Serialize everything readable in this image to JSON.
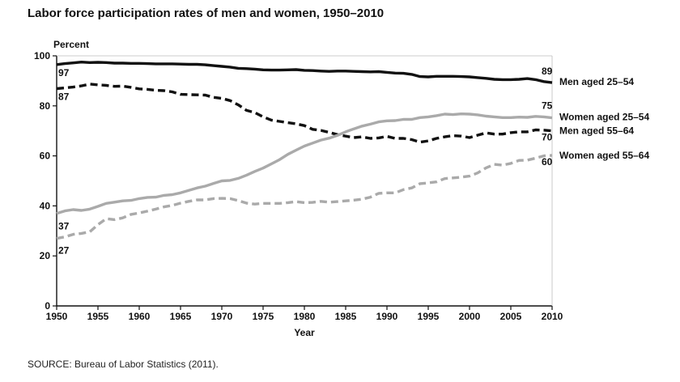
{
  "chart_data": {
    "type": "line",
    "title": "Labor force participation rates of men and women, 1950–2010",
    "ylabel": "Percent",
    "xlabel": "Year",
    "source": "SOURCE: Bureau of Labor Statistics (2011).",
    "xlim": [
      1950,
      2010
    ],
    "ylim": [
      0,
      100
    ],
    "xticks": [
      "1950",
      "1955",
      "1960",
      "1965",
      "1970",
      "1975",
      "1980",
      "1985",
      "1990",
      "1995",
      "2000",
      "2005",
      "2010"
    ],
    "yticks": [
      "0",
      "20",
      "40",
      "60",
      "80",
      "100"
    ],
    "grid": false,
    "legend": "right",
    "x": [
      1950,
      1951,
      1952,
      1953,
      1954,
      1955,
      1956,
      1957,
      1958,
      1959,
      1960,
      1961,
      1962,
      1963,
      1964,
      1965,
      1966,
      1967,
      1968,
      1969,
      1970,
      1971,
      1972,
      1973,
      1974,
      1975,
      1976,
      1977,
      1978,
      1979,
      1980,
      1981,
      1982,
      1983,
      1984,
      1985,
      1986,
      1987,
      1988,
      1989,
      1990,
      1991,
      1992,
      1993,
      1994,
      1995,
      1996,
      1997,
      1998,
      1999,
      2000,
      2001,
      2002,
      2003,
      2004,
      2005,
      2006,
      2007,
      2008,
      2009,
      2010
    ],
    "series": [
      {
        "name": "Men aged 25–54",
        "color": "#111111",
        "dashed": false,
        "values": [
          96.5,
          96.9,
          97.2,
          97.5,
          97.3,
          97.4,
          97.3,
          97.1,
          97.1,
          97.0,
          97.0,
          96.9,
          96.8,
          96.8,
          96.8,
          96.7,
          96.6,
          96.6,
          96.4,
          96.1,
          95.8,
          95.5,
          95.0,
          94.9,
          94.7,
          94.4,
          94.3,
          94.3,
          94.4,
          94.5,
          94.2,
          94.1,
          93.9,
          93.8,
          93.9,
          93.9,
          93.8,
          93.7,
          93.6,
          93.7,
          93.4,
          93.1,
          93.0,
          92.6,
          91.7,
          91.6,
          91.8,
          91.8,
          91.8,
          91.7,
          91.6,
          91.3,
          91.0,
          90.6,
          90.5,
          90.5,
          90.6,
          90.9,
          90.5,
          89.7,
          89.3
        ],
        "start_label": "97",
        "end_label": "89"
      },
      {
        "name": "Men aged 55–64",
        "color": "#111111",
        "dashed": true,
        "values": [
          86.9,
          87.2,
          87.5,
          88.0,
          88.7,
          88.4,
          88.2,
          87.8,
          87.9,
          87.4,
          86.8,
          86.6,
          86.2,
          86.1,
          85.6,
          84.6,
          84.5,
          84.4,
          84.3,
          83.4,
          83.0,
          82.1,
          80.4,
          78.2,
          77.3,
          75.6,
          74.3,
          73.8,
          73.3,
          72.8,
          72.1,
          70.6,
          70.2,
          69.4,
          68.5,
          67.9,
          67.3,
          67.6,
          67.0,
          67.2,
          67.8,
          67.0,
          67.0,
          66.5,
          65.5,
          66.0,
          67.0,
          67.6,
          68.1,
          67.9,
          67.3,
          68.3,
          69.2,
          68.7,
          68.7,
          69.3,
          69.6,
          69.6,
          70.4,
          70.3,
          70.0
        ],
        "start_label": "87",
        "end_label": "70"
      },
      {
        "name": "Women aged 25–54",
        "color": "#aaaaaa",
        "dashed": false,
        "values": [
          37.0,
          38.0,
          38.5,
          38.2,
          38.7,
          39.8,
          41.0,
          41.5,
          42.0,
          42.2,
          42.9,
          43.4,
          43.5,
          44.2,
          44.5,
          45.2,
          46.2,
          47.2,
          47.9,
          49.0,
          50.0,
          50.2,
          51.0,
          52.3,
          53.8,
          55.1,
          56.8,
          58.5,
          60.6,
          62.3,
          63.9,
          65.1,
          66.3,
          67.1,
          68.2,
          69.6,
          70.8,
          71.9,
          72.7,
          73.6,
          74.0,
          74.1,
          74.6,
          74.6,
          75.3,
          75.6,
          76.1,
          76.7,
          76.5,
          76.8,
          76.7,
          76.4,
          75.9,
          75.6,
          75.3,
          75.3,
          75.5,
          75.4,
          75.8,
          75.6,
          75.2
        ],
        "start_label": "37",
        "end_label": "75"
      },
      {
        "name": "Women aged 55–64",
        "color": "#aaaaaa",
        "dashed": true,
        "values": [
          27.0,
          27.6,
          28.6,
          29.0,
          29.6,
          32.5,
          34.9,
          34.5,
          35.2,
          36.6,
          37.2,
          37.9,
          38.7,
          39.6,
          40.2,
          41.1,
          41.8,
          42.4,
          42.4,
          42.9,
          43.0,
          42.9,
          42.1,
          41.1,
          40.7,
          41.0,
          41.0,
          41.0,
          41.3,
          41.7,
          41.3,
          41.4,
          41.8,
          41.5,
          41.7,
          42.0,
          42.3,
          42.7,
          43.5,
          45.0,
          45.2,
          45.2,
          46.5,
          47.2,
          48.9,
          49.2,
          49.6,
          50.9,
          51.2,
          51.5,
          51.9,
          53.2,
          55.2,
          56.6,
          56.3,
          57.0,
          58.2,
          58.3,
          59.1,
          60.0,
          60.2
        ],
        "start_label": "27",
        "end_label": "60"
      }
    ]
  }
}
